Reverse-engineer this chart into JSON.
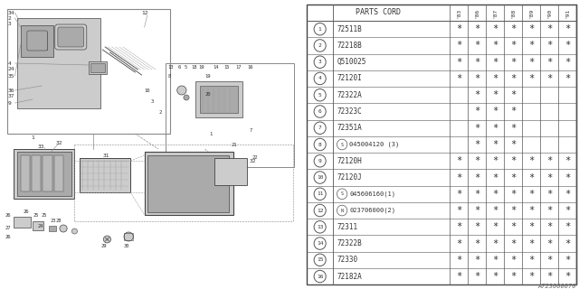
{
  "diagram_code": "A723000070",
  "table_header": "PARTS CORD",
  "col_headers": [
    "'83",
    "'86",
    "'87",
    "'88",
    "'89",
    "'90",
    "'91"
  ],
  "rows": [
    {
      "num": "1",
      "special": null,
      "part": "72511B",
      "marks": [
        1,
        1,
        1,
        1,
        1,
        1,
        1
      ]
    },
    {
      "num": "2",
      "special": null,
      "part": "72218B",
      "marks": [
        1,
        1,
        1,
        1,
        1,
        1,
        1
      ]
    },
    {
      "num": "3",
      "special": null,
      "part": "Q510025",
      "marks": [
        1,
        1,
        1,
        1,
        1,
        1,
        1
      ]
    },
    {
      "num": "4",
      "special": null,
      "part": "72120I",
      "marks": [
        1,
        1,
        1,
        1,
        1,
        1,
        1
      ]
    },
    {
      "num": "5",
      "special": null,
      "part": "72322A",
      "marks": [
        0,
        1,
        1,
        1,
        0,
        0,
        0
      ]
    },
    {
      "num": "6",
      "special": null,
      "part": "72323C",
      "marks": [
        0,
        1,
        1,
        1,
        0,
        0,
        0
      ]
    },
    {
      "num": "7",
      "special": null,
      "part": "72351A",
      "marks": [
        0,
        1,
        1,
        1,
        0,
        0,
        0
      ]
    },
    {
      "num": "8",
      "special": "S",
      "part": "045004120 (3)",
      "marks": [
        0,
        1,
        1,
        1,
        0,
        0,
        0
      ]
    },
    {
      "num": "9",
      "special": null,
      "part": "72120H",
      "marks": [
        1,
        1,
        1,
        1,
        1,
        1,
        1
      ]
    },
    {
      "num": "10",
      "special": null,
      "part": "72120J",
      "marks": [
        1,
        1,
        1,
        1,
        1,
        1,
        1
      ]
    },
    {
      "num": "11",
      "special": "S",
      "part": "045606160(1)",
      "marks": [
        1,
        1,
        1,
        1,
        1,
        1,
        1
      ]
    },
    {
      "num": "12",
      "special": "N",
      "part": "023706000(2)",
      "marks": [
        1,
        1,
        1,
        1,
        1,
        1,
        1
      ]
    },
    {
      "num": "13",
      "special": null,
      "part": "72311",
      "marks": [
        1,
        1,
        1,
        1,
        1,
        1,
        1
      ]
    },
    {
      "num": "14",
      "special": null,
      "part": "72322B",
      "marks": [
        1,
        1,
        1,
        1,
        1,
        1,
        1
      ]
    },
    {
      "num": "15",
      "special": null,
      "part": "72330",
      "marks": [
        1,
        1,
        1,
        1,
        1,
        1,
        1
      ]
    },
    {
      "num": "16",
      "special": null,
      "part": "72182A",
      "marks": [
        1,
        1,
        1,
        1,
        1,
        1,
        1
      ]
    }
  ],
  "bg_color": "#ffffff",
  "line_color": "#444444",
  "text_color": "#333333",
  "gray_light": "#cccccc",
  "gray_mid": "#aaaaaa",
  "gray_dark": "#777777"
}
